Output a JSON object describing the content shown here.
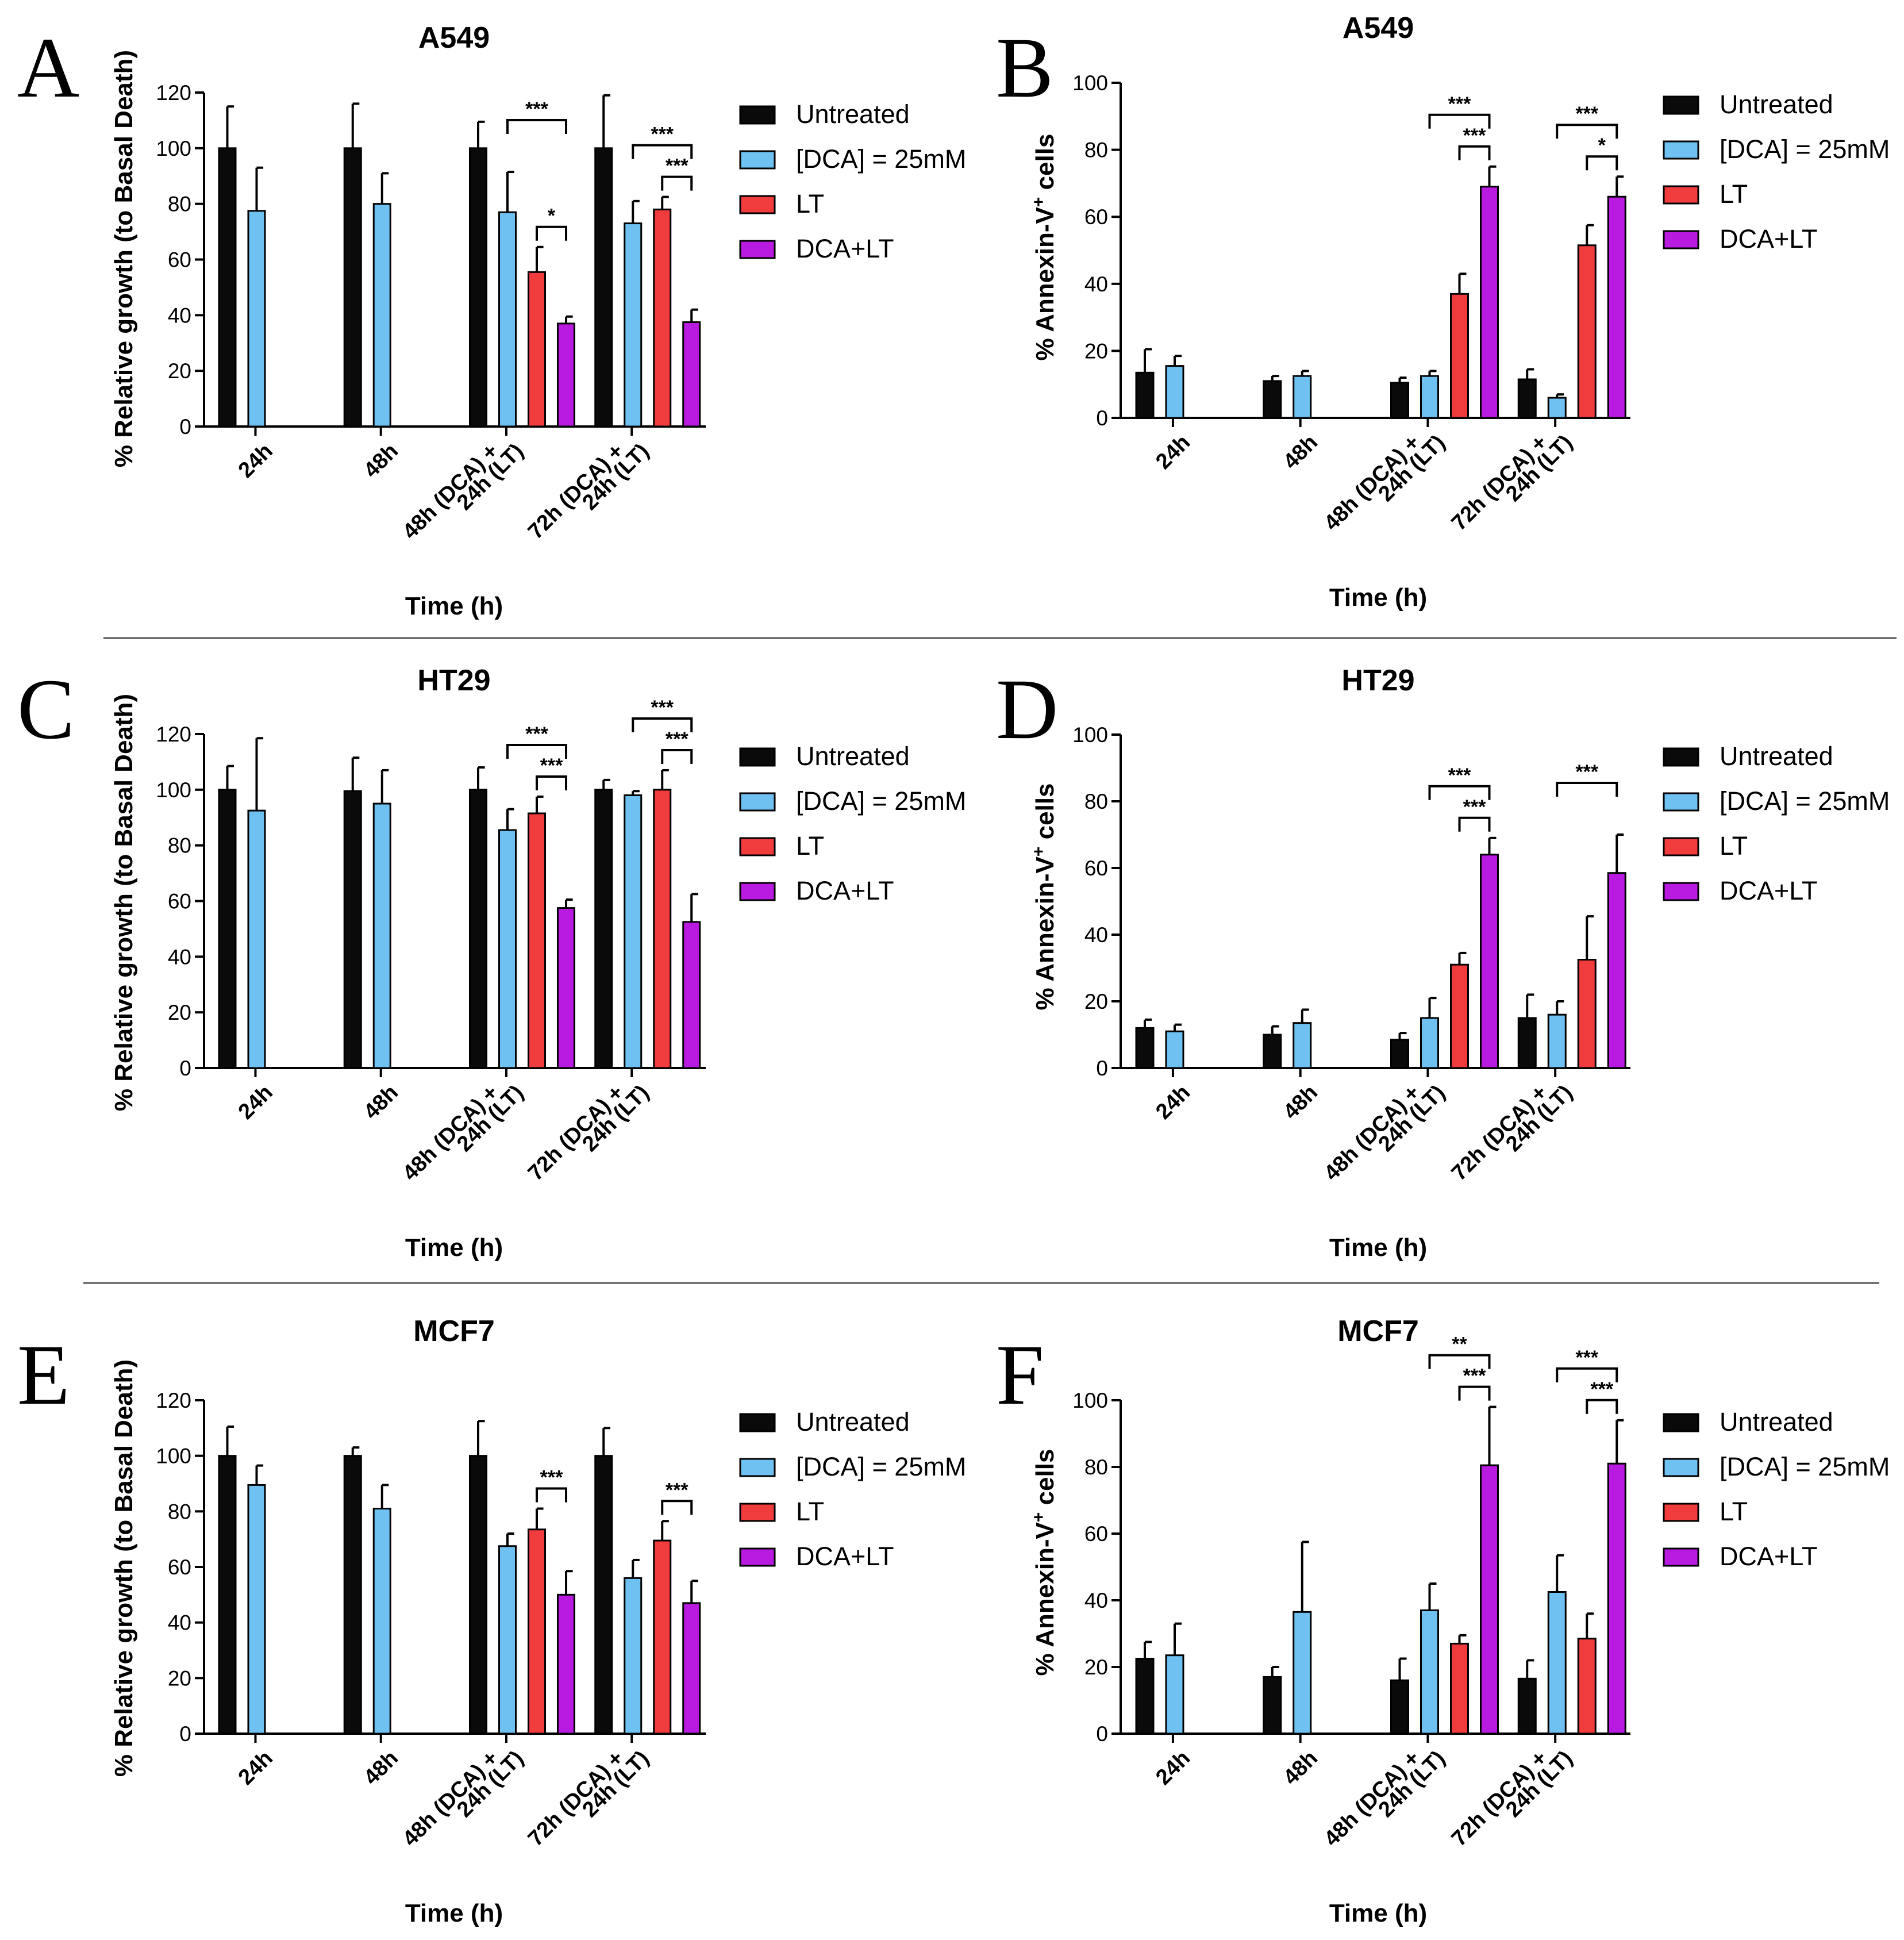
{
  "figure": {
    "colors": {
      "untreated": "#0a0a0a",
      "dca": "#6ec1f0",
      "lt": "#f03c3c",
      "dca_lt": "#b81ae0"
    },
    "separator_color": "#555555"
  },
  "chart_data": [
    {
      "id": "A",
      "letter": "A",
      "type": "bar",
      "title": "A549",
      "ylabel": "% Relative growth (to Basal Death)",
      "xlabel": "Time (h)",
      "ylim": [
        0,
        120
      ],
      "yticks": [
        0,
        20,
        40,
        60,
        80,
        100,
        120
      ],
      "categories": [
        [
          "24h"
        ],
        [
          "48h"
        ],
        [
          "48h (DCA) +",
          "24h (LT)"
        ],
        [
          "72h (DCA) +",
          "24h (LT)"
        ]
      ],
      "legend_position": "top-right",
      "series": [
        {
          "name": "Untreated",
          "color": "#0a0a0a",
          "values": [
            100,
            100,
            100,
            100
          ],
          "errors": [
            15,
            16,
            9.5,
            19
          ]
        },
        {
          "name": "[DCA] = 25mM",
          "color": "#6ec1f0",
          "values": [
            77.5,
            80,
            77,
            73
          ],
          "errors": [
            15.5,
            11,
            14.5,
            8
          ]
        },
        {
          "name": "LT",
          "color": "#f03c3c",
          "values": [
            null,
            null,
            55.5,
            78
          ],
          "errors": [
            null,
            null,
            9,
            4.5
          ]
        },
        {
          "name": "DCA+LT",
          "color": "#b81ae0",
          "values": [
            null,
            null,
            37,
            37.5
          ],
          "errors": [
            null,
            null,
            2.5,
            4.5
          ]
        }
      ],
      "significance": [
        {
          "group": 2,
          "from": 1,
          "to": 3,
          "label": "***",
          "level": 0
        },
        {
          "group": 2,
          "from": 2,
          "to": 3,
          "label": "*",
          "level": 1
        },
        {
          "group": 3,
          "from": 1,
          "to": 3,
          "label": "***",
          "level": 0
        },
        {
          "group": 3,
          "from": 2,
          "to": 3,
          "label": "***",
          "level": 1
        }
      ]
    },
    {
      "id": "B",
      "letter": "B",
      "type": "bar",
      "title": "A549",
      "ylabel": "% Annexin-V+ cells",
      "ylabel_main": "% Annexin-V",
      "ylabel_sup": "+",
      "ylabel_tail": " cells",
      "xlabel": "Time (h)",
      "ylim": [
        0,
        100
      ],
      "yticks": [
        0,
        20,
        40,
        60,
        80,
        100
      ],
      "categories": [
        [
          "24h"
        ],
        [
          "48h"
        ],
        [
          "48h (DCA) +",
          "24h (LT)"
        ],
        [
          "72h (DCA) +",
          "24h (LT)"
        ]
      ],
      "legend_position": "top-right",
      "series": [
        {
          "name": "Untreated",
          "color": "#0a0a0a",
          "values": [
            13.5,
            11,
            10.5,
            11.5
          ],
          "errors": [
            7,
            1.5,
            1.5,
            3
          ]
        },
        {
          "name": "[DCA] = 25mM",
          "color": "#6ec1f0",
          "values": [
            15.5,
            12.5,
            12.5,
            6
          ],
          "errors": [
            3,
            1.5,
            1.5,
            1
          ]
        },
        {
          "name": "LT",
          "color": "#f03c3c",
          "values": [
            null,
            null,
            37,
            51.5
          ],
          "errors": [
            null,
            null,
            6,
            6
          ]
        },
        {
          "name": "DCA+LT",
          "color": "#b81ae0",
          "values": [
            null,
            null,
            69,
            66
          ],
          "errors": [
            null,
            null,
            6,
            6
          ]
        }
      ],
      "significance": [
        {
          "group": 2,
          "from": 1,
          "to": 3,
          "label": "***",
          "level": 0
        },
        {
          "group": 2,
          "from": 2,
          "to": 3,
          "label": "***",
          "level": 1
        },
        {
          "group": 3,
          "from": 1,
          "to": 3,
          "label": "***",
          "level": 0
        },
        {
          "group": 3,
          "from": 2,
          "to": 3,
          "label": "*",
          "level": 1
        }
      ]
    },
    {
      "id": "C",
      "letter": "C",
      "type": "bar",
      "title": "HT29",
      "ylabel": "% Relative growth (to Basal Death)",
      "xlabel": "Time (h)",
      "ylim": [
        0,
        120
      ],
      "yticks": [
        0,
        20,
        40,
        60,
        80,
        100,
        120
      ],
      "categories": [
        [
          "24h"
        ],
        [
          "48h"
        ],
        [
          "48h (DCA) +",
          "24h (LT)"
        ],
        [
          "72h (DCA) +",
          "24h (LT)"
        ]
      ],
      "legend_position": "top-right",
      "series": [
        {
          "name": "Untreated",
          "color": "#0a0a0a",
          "values": [
            100,
            99.5,
            100,
            100
          ],
          "errors": [
            8.5,
            12,
            8,
            3.5
          ]
        },
        {
          "name": "[DCA] = 25mM",
          "color": "#6ec1f0",
          "values": [
            92.5,
            95,
            85.5,
            98
          ],
          "errors": [
            26,
            12,
            7.5,
            1.5
          ]
        },
        {
          "name": "LT",
          "color": "#f03c3c",
          "values": [
            null,
            null,
            91.5,
            100
          ],
          "errors": [
            null,
            null,
            6,
            7
          ]
        },
        {
          "name": "DCA+LT",
          "color": "#b81ae0",
          "values": [
            null,
            null,
            57.5,
            52.5
          ],
          "errors": [
            null,
            null,
            3,
            10
          ]
        }
      ],
      "significance": [
        {
          "group": 2,
          "from": 1,
          "to": 3,
          "label": "***",
          "level": 0
        },
        {
          "group": 2,
          "from": 2,
          "to": 3,
          "label": "***",
          "level": 1
        },
        {
          "group": 3,
          "from": 1,
          "to": 3,
          "label": "***",
          "level": 0
        },
        {
          "group": 3,
          "from": 2,
          "to": 3,
          "label": "***",
          "level": 1
        }
      ]
    },
    {
      "id": "D",
      "letter": "D",
      "type": "bar",
      "title": "HT29",
      "ylabel": "% Annexin-V+ cells",
      "ylabel_main": "% Annexin-V",
      "ylabel_sup": "+",
      "ylabel_tail": " cells",
      "xlabel": "Time (h)",
      "ylim": [
        0,
        100
      ],
      "yticks": [
        0,
        20,
        40,
        60,
        80,
        100
      ],
      "categories": [
        [
          "24h"
        ],
        [
          "48h"
        ],
        [
          "48h (DCA) +",
          "24h (LT)"
        ],
        [
          "72h (DCA) +",
          "24h (LT)"
        ]
      ],
      "legend_position": "top-right",
      "series": [
        {
          "name": "Untreated",
          "color": "#0a0a0a",
          "values": [
            12,
            10,
            8.5,
            15
          ],
          "errors": [
            2.5,
            2.5,
            2,
            7
          ]
        },
        {
          "name": "[DCA] = 25mM",
          "color": "#6ec1f0",
          "values": [
            11,
            13.5,
            15,
            16
          ],
          "errors": [
            2,
            4,
            6,
            4
          ]
        },
        {
          "name": "LT",
          "color": "#f03c3c",
          "values": [
            null,
            null,
            31,
            32.5
          ],
          "errors": [
            null,
            null,
            3.5,
            13
          ]
        },
        {
          "name": "DCA+LT",
          "color": "#b81ae0",
          "values": [
            null,
            null,
            64,
            58.5
          ],
          "errors": [
            null,
            null,
            5,
            11.5
          ]
        }
      ],
      "significance": [
        {
          "group": 2,
          "from": 1,
          "to": 3,
          "label": "***",
          "level": 0
        },
        {
          "group": 2,
          "from": 2,
          "to": 3,
          "label": "***",
          "level": 1
        },
        {
          "group": 3,
          "from": 1,
          "to": 3,
          "label": "***",
          "level": 0
        }
      ]
    },
    {
      "id": "E",
      "letter": "E",
      "type": "bar",
      "title": "MCF7",
      "ylabel": "% Relative growth (to Basal Death)",
      "xlabel": "Time (h)",
      "ylim": [
        0,
        120
      ],
      "yticks": [
        0,
        20,
        40,
        60,
        80,
        100,
        120
      ],
      "categories": [
        [
          "24h"
        ],
        [
          "48h"
        ],
        [
          "48h (DCA) +",
          "24h (LT)"
        ],
        [
          "72h (DCA) +",
          "24h (LT)"
        ]
      ],
      "legend_position": "top-right",
      "series": [
        {
          "name": "Untreated",
          "color": "#0a0a0a",
          "values": [
            100,
            100,
            100,
            100
          ],
          "errors": [
            10.5,
            3,
            12.5,
            10
          ]
        },
        {
          "name": "[DCA] = 25mM",
          "color": "#6ec1f0",
          "values": [
            89.5,
            81,
            67.5,
            56
          ],
          "errors": [
            7,
            8.5,
            4.5,
            6.5
          ]
        },
        {
          "name": "LT",
          "color": "#f03c3c",
          "values": [
            null,
            null,
            73.5,
            69.5
          ],
          "errors": [
            null,
            null,
            7.5,
            7
          ]
        },
        {
          "name": "DCA+LT",
          "color": "#b81ae0",
          "values": [
            null,
            null,
            50,
            47
          ],
          "errors": [
            null,
            null,
            8.5,
            8
          ]
        }
      ],
      "significance": [
        {
          "group": 2,
          "from": 2,
          "to": 3,
          "label": "***",
          "level": 1
        },
        {
          "group": 3,
          "from": 2,
          "to": 3,
          "label": "***",
          "level": 1
        }
      ]
    },
    {
      "id": "F",
      "letter": "F",
      "type": "bar",
      "title": "MCF7",
      "ylabel": "% Annexin-V+ cells",
      "ylabel_main": "% Annexin-V",
      "ylabel_sup": "+",
      "ylabel_tail": " cells",
      "xlabel": "Time (h)",
      "ylim": [
        0,
        100
      ],
      "yticks": [
        0,
        20,
        40,
        60,
        80,
        100
      ],
      "categories": [
        [
          "24h"
        ],
        [
          "48h"
        ],
        [
          "48h (DCA) +",
          "24h (LT)"
        ],
        [
          "72h (DCA) +",
          "24h (LT)"
        ]
      ],
      "legend_position": "top-right",
      "series": [
        {
          "name": "Untreated",
          "color": "#0a0a0a",
          "values": [
            22.5,
            17,
            16,
            16.5
          ],
          "errors": [
            5,
            3,
            6.5,
            5.5
          ]
        },
        {
          "name": "[DCA] = 25mM",
          "color": "#6ec1f0",
          "values": [
            23.5,
            36.5,
            37,
            42.5
          ],
          "errors": [
            9.5,
            21,
            8,
            11
          ]
        },
        {
          "name": "LT",
          "color": "#f03c3c",
          "values": [
            null,
            null,
            27,
            28.5
          ],
          "errors": [
            null,
            null,
            2.5,
            7.5
          ]
        },
        {
          "name": "DCA+LT",
          "color": "#b81ae0",
          "values": [
            null,
            null,
            80.5,
            81
          ],
          "errors": [
            null,
            null,
            17.5,
            13
          ]
        }
      ],
      "significance": [
        {
          "group": 2,
          "from": 1,
          "to": 3,
          "label": "**",
          "level": 0
        },
        {
          "group": 2,
          "from": 2,
          "to": 3,
          "label": "***",
          "level": 1
        },
        {
          "group": 3,
          "from": 1,
          "to": 3,
          "label": "***",
          "level": 0
        },
        {
          "group": 3,
          "from": 2,
          "to": 3,
          "label": "***",
          "level": 1
        }
      ]
    }
  ]
}
